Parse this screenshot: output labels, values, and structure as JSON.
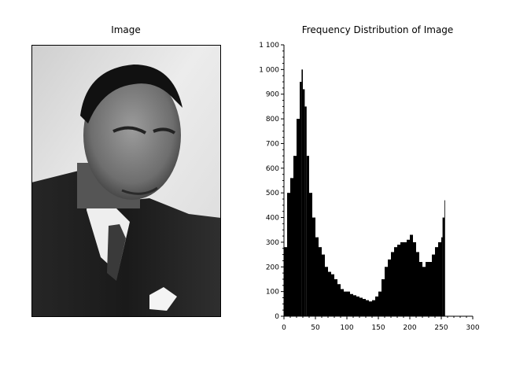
{
  "panels": {
    "left_title": "Image",
    "right_title": "Frequency Distribution of Image"
  },
  "photo": {
    "subject": "portrait-photograph",
    "border_color": "#000000"
  },
  "chart_data": {
    "type": "bar",
    "title": "Frequency Distribution of Image",
    "xlabel": "",
    "ylabel": "",
    "xlim": [
      0,
      300
    ],
    "ylim": [
      0,
      1100
    ],
    "x_ticks": [
      "0",
      "50",
      "100",
      "150",
      "200",
      "250",
      "300"
    ],
    "y_ticks": [
      "0",
      "100",
      "200",
      "300",
      "400",
      "500",
      "600",
      "700",
      "800",
      "900",
      "1 000",
      "1 100"
    ],
    "bar_color": "#000000",
    "grid": false,
    "legend": "none",
    "x": [
      0,
      5,
      10,
      15,
      20,
      25,
      28,
      30,
      33,
      36,
      40,
      45,
      50,
      55,
      60,
      65,
      70,
      75,
      80,
      85,
      90,
      95,
      100,
      105,
      110,
      115,
      120,
      125,
      130,
      135,
      140,
      145,
      150,
      155,
      160,
      165,
      170,
      175,
      180,
      185,
      190,
      195,
      200,
      205,
      210,
      215,
      220,
      225,
      230,
      235,
      240,
      245,
      250,
      252,
      255
    ],
    "values": [
      280,
      500,
      560,
      650,
      800,
      950,
      1000,
      920,
      850,
      650,
      500,
      400,
      320,
      280,
      250,
      200,
      180,
      170,
      150,
      130,
      110,
      100,
      100,
      90,
      85,
      80,
      75,
      70,
      65,
      60,
      65,
      80,
      100,
      150,
      200,
      230,
      260,
      280,
      290,
      300,
      300,
      310,
      330,
      300,
      260,
      220,
      200,
      220,
      220,
      250,
      280,
      300,
      320,
      400,
      470
    ]
  }
}
